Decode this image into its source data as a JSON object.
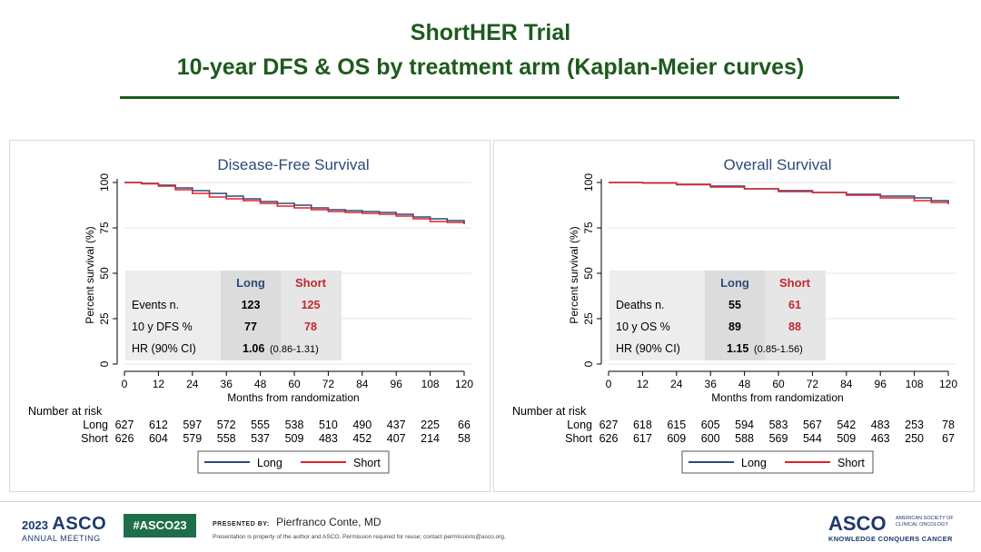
{
  "header": {
    "title_line1": "ShortHER Trial",
    "title_line2": "10-year DFS & OS by treatment arm (Kaplan-Meier curves)"
  },
  "colors": {
    "long": "#2d4a7a",
    "short": "#e0232a",
    "title_green": "#1d5a1d",
    "short_text": "#c1272d"
  },
  "chart_data": [
    {
      "type": "line",
      "title": "Disease-Free Survival",
      "xlabel": "Months from randomization",
      "ylabel": "Percent survival (%)",
      "xlim": [
        0,
        120
      ],
      "ylim": [
        0,
        100
      ],
      "xticks": [
        0,
        12,
        24,
        36,
        48,
        60,
        72,
        84,
        96,
        108,
        120
      ],
      "yticks": [
        0,
        25,
        50,
        75,
        100
      ],
      "series": [
        {
          "name": "Long",
          "x": [
            0,
            6,
            12,
            18,
            24,
            30,
            36,
            42,
            48,
            54,
            60,
            66,
            72,
            78,
            84,
            90,
            96,
            102,
            108,
            114,
            120
          ],
          "y": [
            100,
            99.5,
            98.5,
            97,
            95.5,
            94,
            92.5,
            91,
            89.5,
            88.5,
            87.5,
            86,
            85,
            84.5,
            84,
            83.5,
            82.5,
            81,
            80,
            79,
            77
          ]
        },
        {
          "name": "Short",
          "x": [
            0,
            6,
            12,
            18,
            24,
            30,
            36,
            42,
            48,
            54,
            60,
            66,
            72,
            78,
            84,
            90,
            96,
            102,
            108,
            114,
            120
          ],
          "y": [
            100,
            99.3,
            98,
            96,
            94,
            92,
            91,
            90,
            88.5,
            87,
            86,
            85,
            84,
            83.5,
            83,
            82.5,
            81.5,
            80,
            78.5,
            78,
            78
          ]
        }
      ],
      "table": {
        "headers": [
          "Long",
          "Short"
        ],
        "rows": [
          {
            "label": "Events n.",
            "long": "123",
            "short": "125"
          },
          {
            "label": "10 y DFS %",
            "long": "77",
            "short": "78"
          }
        ],
        "hr_label": "HR (90% CI)",
        "hr_value": "1.06",
        "hr_ci": "(0.86-1.31)"
      },
      "risk": {
        "title": "Number at risk",
        "long": [
          "627",
          "612",
          "597",
          "572",
          "555",
          "538",
          "510",
          "490",
          "437",
          "225",
          "66"
        ],
        "short": [
          "626",
          "604",
          "579",
          "558",
          "537",
          "509",
          "483",
          "452",
          "407",
          "214",
          "58"
        ]
      },
      "legend": [
        "Long",
        "Short"
      ]
    },
    {
      "type": "line",
      "title": "Overall Survival",
      "xlabel": "Months from randomization",
      "ylabel": "Percent survival (%)",
      "xlim": [
        0,
        120
      ],
      "ylim": [
        0,
        100
      ],
      "xticks": [
        0,
        12,
        24,
        36,
        48,
        60,
        72,
        84,
        96,
        108,
        120
      ],
      "yticks": [
        0,
        25,
        50,
        75,
        100
      ],
      "series": [
        {
          "name": "Long",
          "x": [
            0,
            12,
            24,
            36,
            48,
            60,
            72,
            84,
            96,
            108,
            114,
            120
          ],
          "y": [
            100,
            99.8,
            99,
            98,
            96.5,
            95.5,
            94.5,
            93.5,
            92.5,
            91.5,
            90,
            89
          ]
        },
        {
          "name": "Short",
          "x": [
            0,
            12,
            24,
            36,
            48,
            60,
            72,
            84,
            96,
            108,
            114,
            120
          ],
          "y": [
            100,
            99.7,
            98.8,
            97.5,
            96.5,
            95,
            94.5,
            93,
            91.5,
            90,
            89,
            88
          ]
        }
      ],
      "table": {
        "headers": [
          "Long",
          "Short"
        ],
        "rows": [
          {
            "label": "Deaths n.",
            "long": "55",
            "short": "61"
          },
          {
            "label": "10 y OS %",
            "long": "89",
            "short": "88"
          }
        ],
        "hr_label": "HR (90% CI)",
        "hr_value": "1.15",
        "hr_ci": "(0.85-1.56)"
      },
      "risk": {
        "title": "Number at risk",
        "long": [
          "627",
          "618",
          "615",
          "605",
          "594",
          "583",
          "567",
          "542",
          "483",
          "253",
          "78"
        ],
        "short": [
          "626",
          "617",
          "609",
          "600",
          "588",
          "569",
          "544",
          "509",
          "463",
          "250",
          "67"
        ]
      },
      "legend": [
        "Long",
        "Short"
      ]
    }
  ],
  "footer": {
    "year": "2023",
    "asco": "ASCO",
    "meeting": "ANNUAL MEETING",
    "hashtag": "#ASCO23",
    "presented_by": "PRESENTED BY:",
    "presenter": "Pierfranco Conte, MD",
    "disclaimer": "Presentation is property of the author and ASCO. Permission required for reuse; contact permissions@asco.org.",
    "asco_right": "ASCO",
    "society": "AMERICAN SOCIETY OF CLINICAL ONCOLOGY",
    "tagline": "KNOWLEDGE CONQUERS CANCER"
  }
}
